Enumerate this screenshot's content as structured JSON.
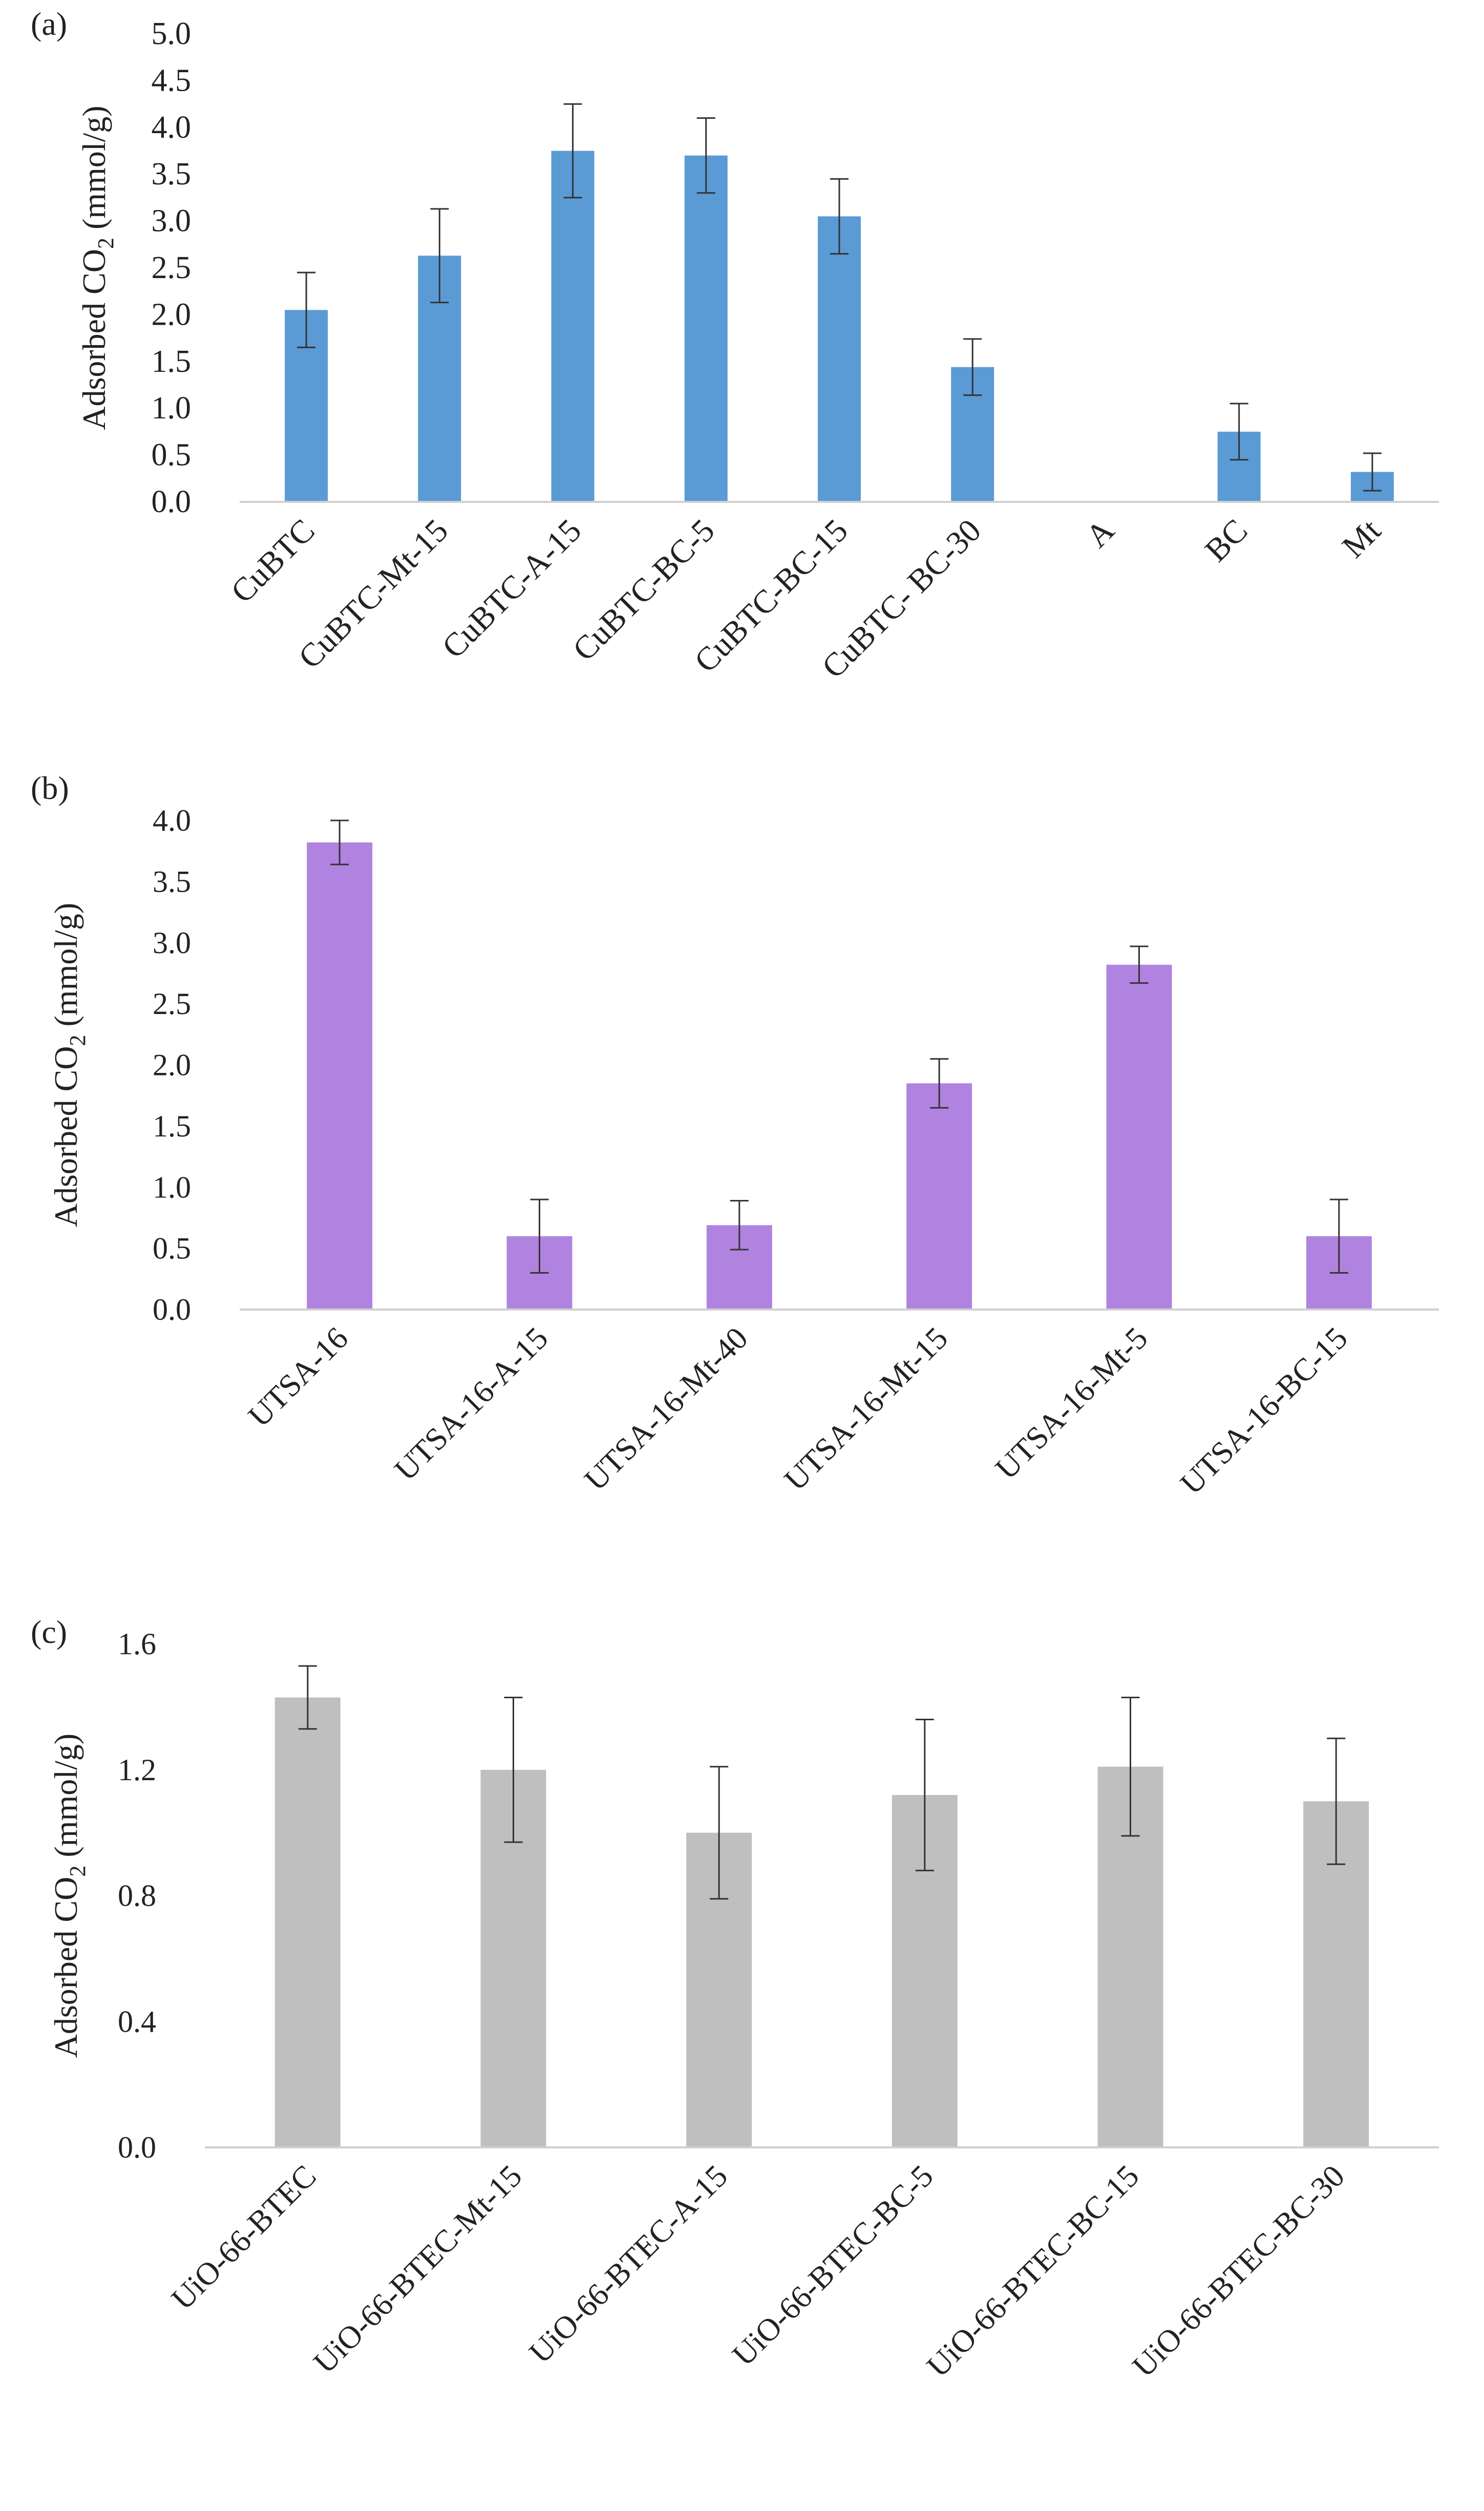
{
  "chart_data": [
    {
      "panel": "(a)",
      "type": "bar",
      "color": "#5b9bd5",
      "categories": [
        "CuBTC",
        "CuBTC-Mt-15",
        "CuBTC-A-15",
        "CuBTC-BC-5",
        "CuBTC-BC-15",
        "CuBTC- BC-30",
        "A",
        "BC",
        "Mt"
      ],
      "values": [
        2.05,
        2.63,
        3.75,
        3.7,
        3.05,
        1.44,
        0,
        0.75,
        0.32
      ],
      "errors": [
        0.4,
        0.5,
        0.5,
        0.4,
        0.4,
        0.3,
        0,
        0.3,
        0.2
      ],
      "ylim": [
        0,
        5
      ],
      "yticks": [
        "0.0",
        "0.5",
        "1.0",
        "1.5",
        "2.0",
        "2.5",
        "3.0",
        "3.5",
        "4.0",
        "4.5",
        "5.0"
      ],
      "ylabel": {
        "main": "Adsorbed CO",
        "sub": "2",
        "tail": " (mmol/g)"
      }
    },
    {
      "panel": "(b)",
      "type": "bar",
      "color": "#b183e0",
      "categories": [
        "UTSA-16",
        "UTSA-16-A-15",
        "UTSA-16-Mt-40",
        "UTSA-16-Mt-15",
        "UTSA-16-Mt-5",
        "UTSA-16-BC-15"
      ],
      "values": [
        3.82,
        0.6,
        0.69,
        1.85,
        2.82,
        0.6
      ],
      "errors": [
        0.18,
        0.3,
        0.2,
        0.2,
        0.15,
        0.3
      ],
      "ylim": [
        0,
        4
      ],
      "yticks": [
        "0.0",
        "0.5",
        "1.0",
        "1.5",
        "2.0",
        "2.5",
        "3.0",
        "3.5",
        "4.0"
      ],
      "ylabel": {
        "main": "Adsorbed CO",
        "sub": "2",
        "tail": " (mmol/g)"
      }
    },
    {
      "panel": "(c)",
      "type": "bar",
      "color": "#bfbfbf",
      "categories": [
        "UiO-66-BTEC",
        "UiO-66-BTEC-Mt-15",
        "UiO-66-BTEC-A-15",
        "UiO-66-BTEC-BC-5",
        "UiO-66-BTEC-BC-15",
        "UiO-66-BTEC-BC-30"
      ],
      "values": [
        1.43,
        1.2,
        1.0,
        1.12,
        1.21,
        1.1
      ],
      "errors": [
        0.1,
        0.23,
        0.21,
        0.24,
        0.22,
        0.2
      ],
      "ylim": [
        0,
        1.6
      ],
      "yticks": [
        "0.0",
        "0.4",
        "0.8",
        "1.2",
        "1.6"
      ],
      "ylabel": {
        "main": "Adsorbed CO",
        "sub": "2",
        "tail": " (mmol/g)"
      }
    }
  ]
}
